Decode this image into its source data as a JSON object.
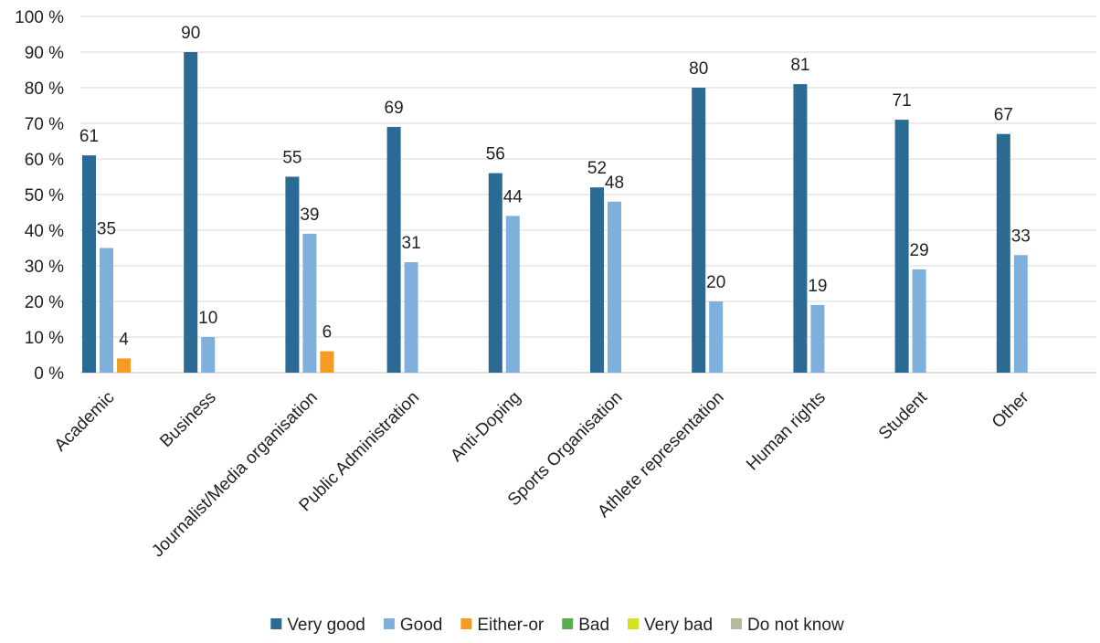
{
  "chart_data": {
    "type": "bar",
    "title": "",
    "xlabel": "",
    "ylabel": "",
    "ylim": [
      0,
      100
    ],
    "y_ticks": [
      0,
      10,
      20,
      30,
      40,
      50,
      60,
      70,
      80,
      90,
      100
    ],
    "y_tick_labels": [
      "0 %",
      "10 %",
      "20 %",
      "30 %",
      "40 %",
      "50 %",
      "60 %",
      "70 %",
      "80 %",
      "90 %",
      "100 %"
    ],
    "grid": true,
    "legend_position": "bottom",
    "categories": [
      "Academic",
      "Business",
      "Journalist/Media organisation",
      "Public Administration",
      "Anti-Doping",
      "Sports Organisation",
      "Athlete representation",
      "Human rights",
      "Student",
      "Other"
    ],
    "series": [
      {
        "name": "Very good",
        "color": "#2b6a93",
        "values": [
          61,
          90,
          55,
          69,
          56,
          52,
          80,
          81,
          71,
          67
        ]
      },
      {
        "name": "Good",
        "color": "#7fb0db",
        "values": [
          35,
          10,
          39,
          31,
          44,
          48,
          20,
          19,
          29,
          33
        ]
      },
      {
        "name": "Either-or",
        "color": "#f59a23",
        "values": [
          4,
          0,
          6,
          0,
          0,
          0,
          0,
          0,
          0,
          0
        ]
      },
      {
        "name": "Bad",
        "color": "#5aad4e",
        "values": [
          0,
          0,
          0,
          0,
          0,
          0,
          0,
          0,
          0,
          0
        ]
      },
      {
        "name": "Very bad",
        "color": "#d6df23",
        "values": [
          0,
          0,
          0,
          0,
          0,
          0,
          0,
          0,
          0,
          0
        ]
      },
      {
        "name": "Do not know",
        "color": "#b9b9a0",
        "values": [
          0,
          0,
          0,
          0,
          0,
          0,
          0,
          0,
          0,
          0
        ]
      }
    ]
  }
}
